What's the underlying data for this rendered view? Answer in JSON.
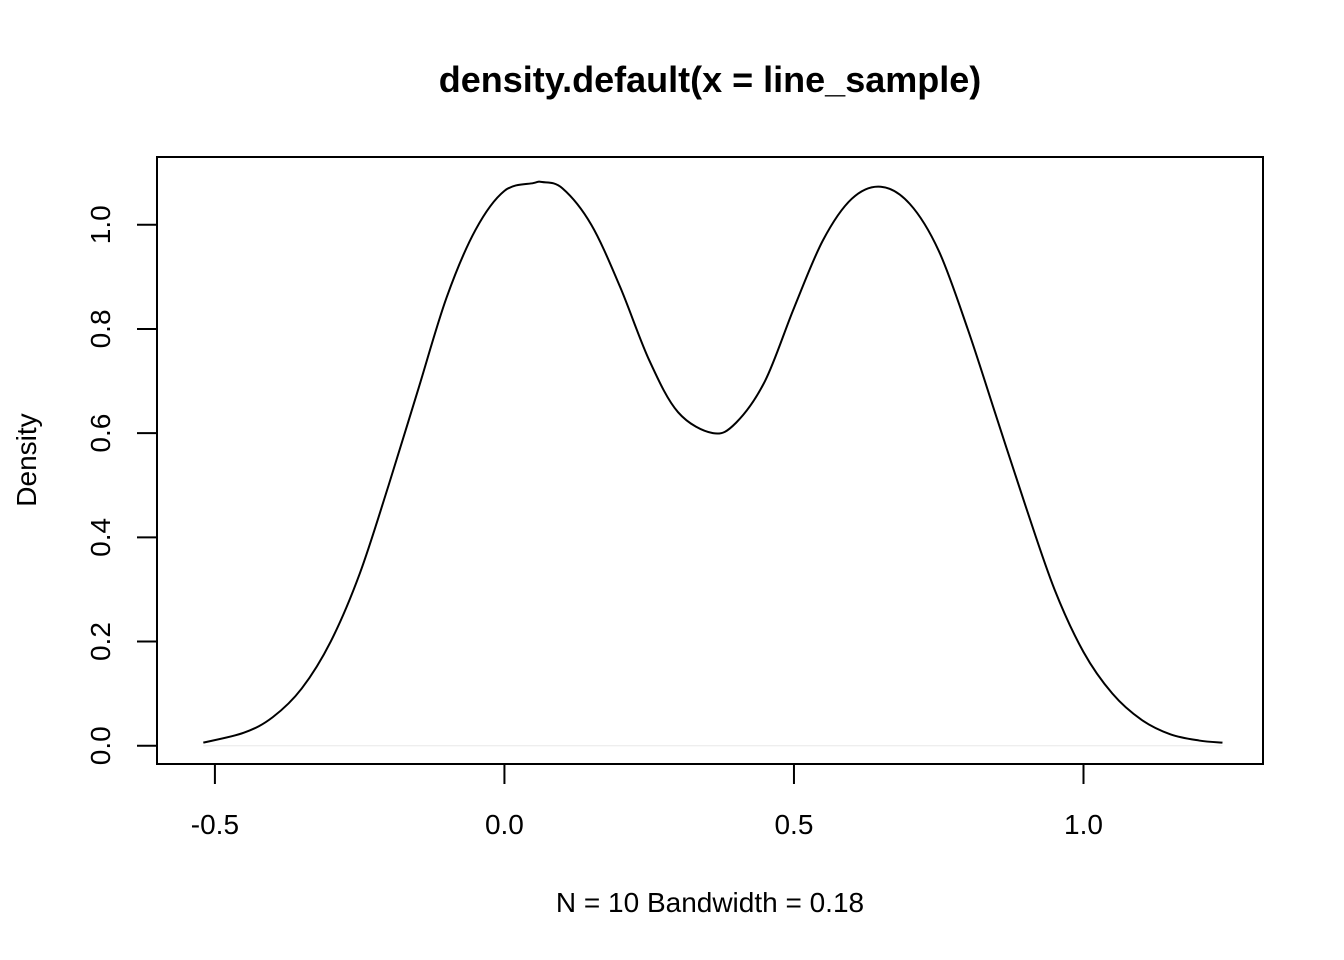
{
  "chart_data": {
    "type": "line",
    "title": "density.default(x = line_sample)",
    "xlabel": "N = 10   Bandwidth = 0.18",
    "ylabel": "Density",
    "xlim": [
      -0.6,
      1.31
    ],
    "ylim": [
      -0.035,
      1.13
    ],
    "xticks": [
      -0.5,
      0.0,
      0.5,
      1.0
    ],
    "xtick_labels": [
      "-0.5",
      "0.0",
      "0.5",
      "1.0"
    ],
    "yticks": [
      0.0,
      0.2,
      0.4,
      0.6,
      0.8,
      1.0
    ],
    "ytick_labels": [
      "0.0",
      "0.2",
      "0.4",
      "0.6",
      "0.8",
      "1.0"
    ],
    "grid": false,
    "legend": "none",
    "series": [
      {
        "x": [
          -0.52,
          -0.45,
          -0.4,
          -0.35,
          -0.3,
          -0.25,
          -0.2,
          -0.15,
          -0.1,
          -0.05,
          0.0,
          0.05,
          0.065,
          0.1,
          0.15,
          0.2,
          0.25,
          0.3,
          0.36,
          0.4,
          0.45,
          0.5,
          0.55,
          0.6,
          0.65,
          0.7,
          0.75,
          0.8,
          0.85,
          0.9,
          0.95,
          1.0,
          1.05,
          1.1,
          1.15,
          1.2,
          1.24
        ],
        "y": [
          0.006,
          0.025,
          0.055,
          0.11,
          0.2,
          0.33,
          0.5,
          0.68,
          0.86,
          0.99,
          1.065,
          1.08,
          1.082,
          1.07,
          1.0,
          0.88,
          0.74,
          0.64,
          0.6,
          0.62,
          0.7,
          0.84,
          0.97,
          1.05,
          1.073,
          1.04,
          0.95,
          0.8,
          0.63,
          0.46,
          0.3,
          0.18,
          0.1,
          0.05,
          0.022,
          0.01,
          0.006
        ]
      }
    ]
  }
}
